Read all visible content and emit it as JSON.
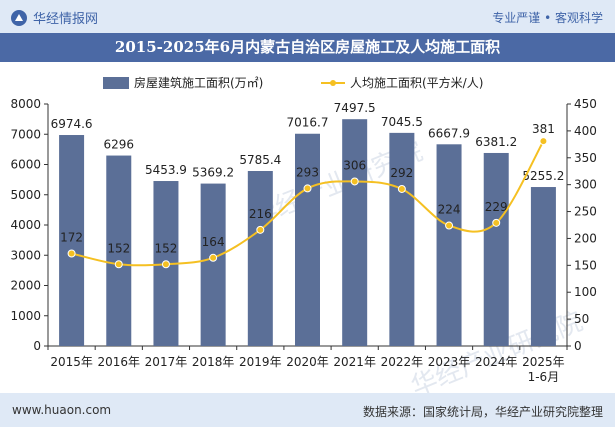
{
  "header": {
    "brand": "华经情报网",
    "slogan": "专业严谨 • 客观科学",
    "title": "2015-2025年6月内蒙古自治区房屋施工及人均施工面积"
  },
  "footer": {
    "website": "www.huaon.com",
    "source": "数据来源：国家统计局，华经产业研究院整理"
  },
  "watermark": "华经产业研究院",
  "colors": {
    "bar": "#5b6f97",
    "line": "#f5c022",
    "title_bg": "#4b69a5",
    "band_bg": "#dfe9f6"
  },
  "chart_data": {
    "type": "bar",
    "categories": [
      "2015年",
      "2016年",
      "2017年",
      "2018年",
      "2019年",
      "2020年",
      "2021年",
      "2022年",
      "2023年",
      "2024年",
      "2025年\n1-6月"
    ],
    "series": [
      {
        "name": "房屋建筑施工面积(万㎡)",
        "type": "bar",
        "axis": "left",
        "values": [
          6974.6,
          6296,
          5453.9,
          5369.2,
          5785.4,
          7016.7,
          7497.5,
          7045.5,
          6667.9,
          6381.2,
          5255.2
        ],
        "labels": [
          "6974.6",
          "6296",
          "5453.9",
          "5369.2",
          "5785.4",
          "7016.7",
          "7497.5",
          "7045.5",
          "6667.9",
          "6381.2",
          "5255.2"
        ]
      },
      {
        "name": "人均施工面积(平方米/人)",
        "type": "line",
        "axis": "right",
        "values": [
          172,
          152,
          152,
          164,
          216,
          293,
          306,
          292,
          224,
          229,
          381
        ],
        "labels": [
          "172",
          "152",
          "152",
          "164",
          "216",
          "293",
          "306",
          "292",
          "224",
          "229",
          "381"
        ]
      }
    ],
    "y_left": {
      "min": 0,
      "max": 8000,
      "ticks": [
        0,
        1000,
        2000,
        3000,
        4000,
        5000,
        6000,
        7000,
        8000
      ]
    },
    "y_right": {
      "min": 0,
      "max": 450,
      "ticks": [
        0,
        50,
        100,
        150,
        200,
        250,
        300,
        350,
        400,
        450
      ]
    },
    "legend_position": "top-center",
    "grid": false
  }
}
